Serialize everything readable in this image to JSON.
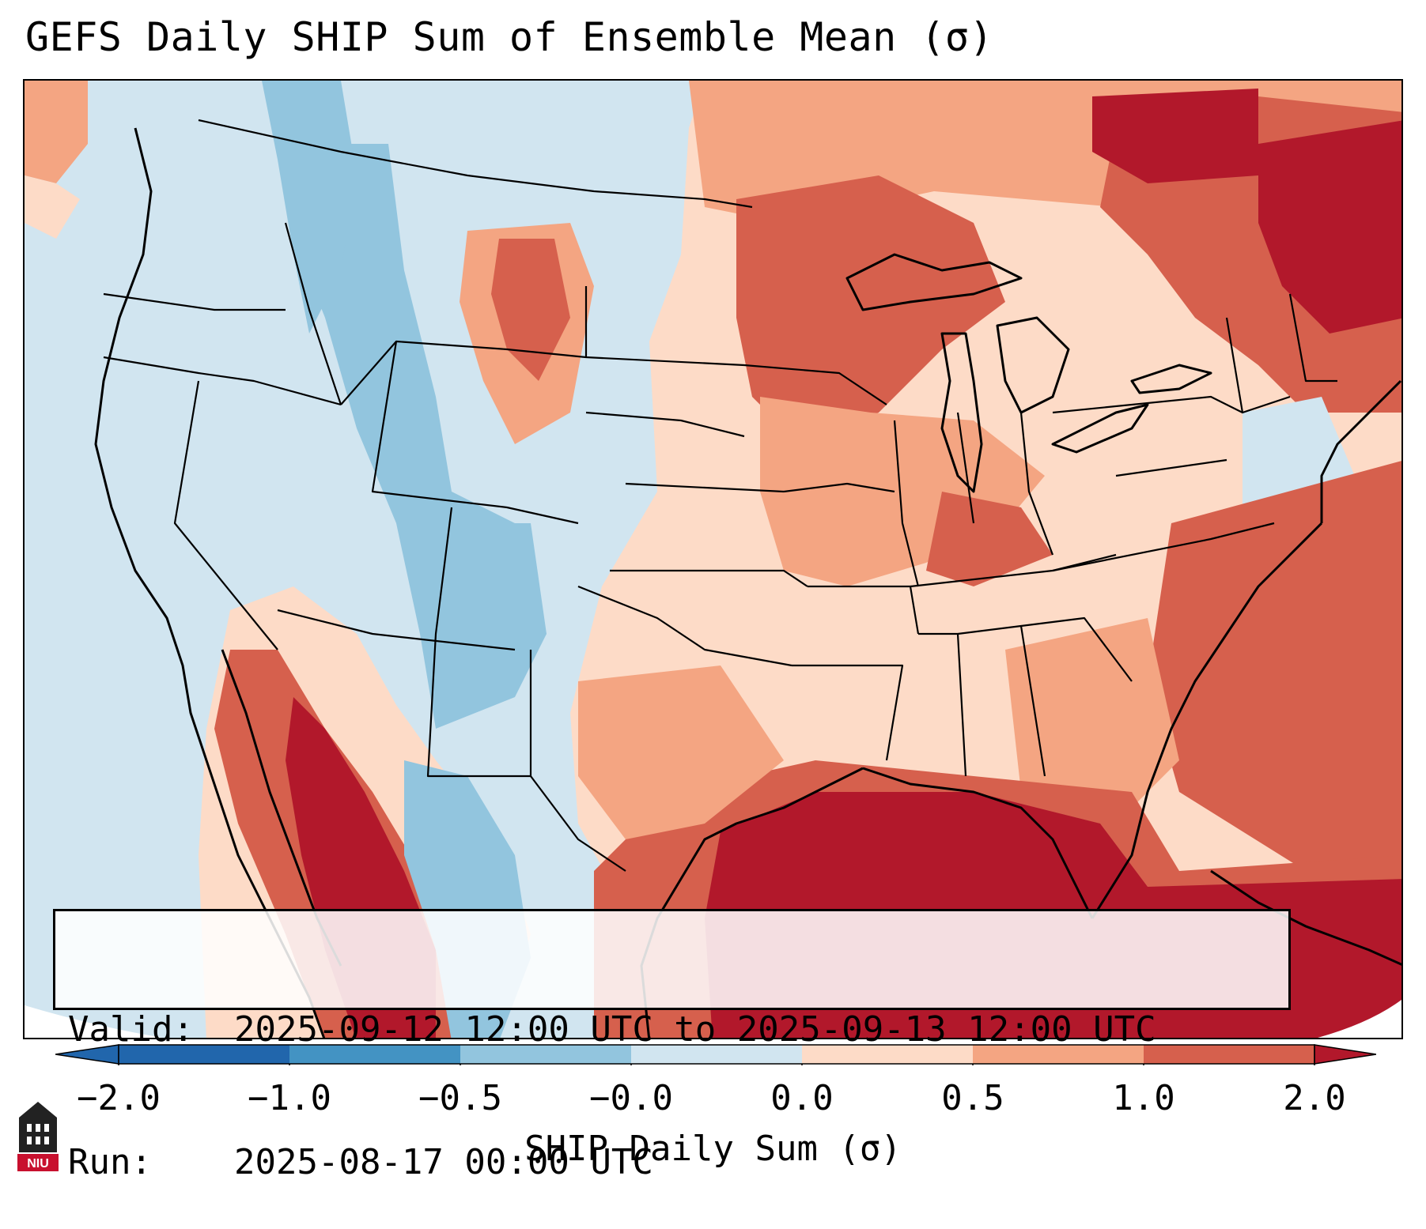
{
  "title": "GEFS Daily SHIP Sum of Ensemble Mean (σ)",
  "info": {
    "valid_label": "Valid:",
    "valid_value": "2025-09-12 12:00 UTC to 2025-09-13 12:00 UTC",
    "run_label": "Run:",
    "run_value": "2025-08-17 00:00 UTC"
  },
  "colorbar": {
    "label": "SHIP Daily Sum (σ)",
    "ticks": [
      "−2.0",
      "−1.0",
      "−0.5",
      "−0.0",
      "0.0",
      "0.5",
      "1.0",
      "2.0"
    ],
    "colors": [
      "#2166ac",
      "#4393c3",
      "#92c5de",
      "#d1e5f0",
      "#fddbc7",
      "#f4a582",
      "#d6604d",
      "#b2182b"
    ]
  },
  "logo": {
    "text": "NIU"
  }
}
